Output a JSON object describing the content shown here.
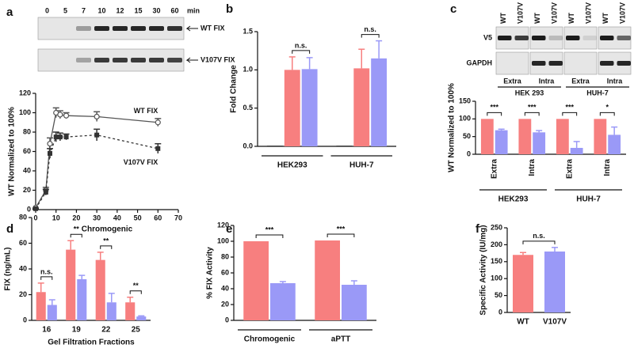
{
  "chart_data": [
    {
      "panel": "a",
      "type": "line",
      "blot": {
        "lanes": [
          "0",
          "5",
          "7",
          "10",
          "12",
          "15",
          "30",
          "60"
        ],
        "unit": "min"
      },
      "xlabel": "Chromogenic",
      "ylabel": "WT Normalized to 100%",
      "xlim": [
        0,
        70
      ],
      "xticks": [
        0,
        10,
        20,
        30,
        40,
        50,
        60,
        70
      ],
      "ylim": [
        0,
        120
      ],
      "yticks": [
        0,
        20,
        40,
        60,
        80,
        100,
        120
      ],
      "series": [
        {
          "name": "WT FIX",
          "color": "#555555",
          "marker": "open-circle",
          "dash": false,
          "x": [
            0,
            5,
            7,
            10,
            12,
            15,
            30,
            60
          ],
          "values": [
            2,
            20,
            68,
            100,
            98,
            97,
            96,
            90
          ],
          "errors": [
            0,
            3,
            6,
            5,
            4,
            3,
            5,
            4
          ]
        },
        {
          "name": "V107V FIX",
          "color": "#333333",
          "marker": "square",
          "dash": true,
          "x": [
            0,
            5,
            7,
            10,
            12,
            15,
            30,
            60
          ],
          "values": [
            1,
            18,
            58,
            75,
            75,
            75,
            77,
            63
          ],
          "errors": [
            0,
            3,
            5,
            5,
            4,
            3,
            6,
            5
          ]
        }
      ]
    },
    {
      "panel": "b",
      "type": "bar",
      "ylabel": "Fold Change",
      "categories": [
        "HEK293",
        "HUH-7"
      ],
      "ylim": [
        0,
        1.5
      ],
      "yticks": [
        {
          "value": 0,
          "label": "0.0"
        },
        {
          "value": 0.5,
          "label": "0.5"
        },
        {
          "value": 1,
          "label": "1.0"
        },
        {
          "value": 1.5,
          "label": "1.5"
        }
      ],
      "series": [
        {
          "color": "#444444",
          "values": [
            0.01,
            0.01
          ]
        },
        {
          "color": "#f77f7f",
          "values": [
            1.0,
            1.02
          ],
          "errors": [
            0.17,
            0.25
          ]
        },
        {
          "color": "#9a99f7",
          "values": [
            1.01,
            1.15
          ],
          "errors": [
            0.15,
            0.23
          ]
        }
      ],
      "significance": [
        "n.s.",
        "n.s."
      ]
    },
    {
      "panel": "c",
      "type": "bar",
      "blot": {
        "lanes": [
          "WT",
          "V107V"
        ],
        "rows": [
          "V5",
          "GAPDH"
        ],
        "fractions": [
          "Extra",
          "Intra",
          "Extra",
          "Intra"
        ],
        "cells": [
          "HEK 293",
          "HUH-7"
        ]
      },
      "ylabel": "WT Normalized to 100%",
      "categories": [
        "Extra",
        "Intra",
        "Extra",
        "Intra"
      ],
      "groups": [
        "HEK293",
        "HUH-7"
      ],
      "ylim": [
        0,
        150
      ],
      "yticks": [
        0,
        50,
        100,
        150
      ],
      "series": [
        {
          "color": "#f77f7f",
          "values": [
            100,
            100,
            100,
            100
          ]
        },
        {
          "color": "#9a99f7",
          "values": [
            68,
            62,
            18,
            55
          ],
          "errors": [
            3,
            5,
            18,
            22
          ]
        }
      ],
      "significance": [
        "***",
        "***",
        "***",
        "*"
      ]
    },
    {
      "panel": "d",
      "type": "bar",
      "ylabel": "FIX (ng/mL)",
      "xlabel": "Gel Filtration Fractions",
      "categories": [
        "16",
        "19",
        "22",
        "25"
      ],
      "ylim": [
        0,
        80
      ],
      "yticks": [
        0,
        20,
        40,
        60,
        80
      ],
      "series": [
        {
          "color": "#f77f7f",
          "values": [
            22,
            55,
            47,
            14
          ],
          "errors": [
            7,
            7,
            6,
            4
          ]
        },
        {
          "color": "#9a99f7",
          "values": [
            12,
            32,
            14,
            3
          ],
          "errors": [
            4,
            3,
            7,
            0.5
          ]
        }
      ],
      "significance": [
        "n.s.",
        "**",
        "**",
        "**"
      ]
    },
    {
      "panel": "e",
      "type": "bar",
      "ylabel": "% FIX Activity",
      "categories": [
        "Chromogenic",
        "aPTT"
      ],
      "ylim": [
        0,
        120
      ],
      "yticks": [
        0,
        20,
        40,
        60,
        80,
        100,
        120
      ],
      "series": [
        {
          "color": "#f77f7f",
          "values": [
            100,
            101
          ]
        },
        {
          "color": "#9a99f7",
          "values": [
            47,
            45
          ],
          "errors": [
            2,
            5
          ]
        }
      ],
      "significance": [
        "***",
        "***"
      ]
    },
    {
      "panel": "f",
      "type": "bar",
      "ylabel": "Specific Activity (IU/mg)",
      "categories": [
        "WT",
        "V107V"
      ],
      "colors": [
        "#f77f7f",
        "#9a99f7"
      ],
      "values": [
        170,
        180
      ],
      "errors": [
        7,
        12
      ],
      "ylim": [
        0,
        250
      ],
      "yticks": [
        0,
        50,
        100,
        150,
        200,
        250
      ],
      "significance": [
        "n.s."
      ]
    }
  ]
}
